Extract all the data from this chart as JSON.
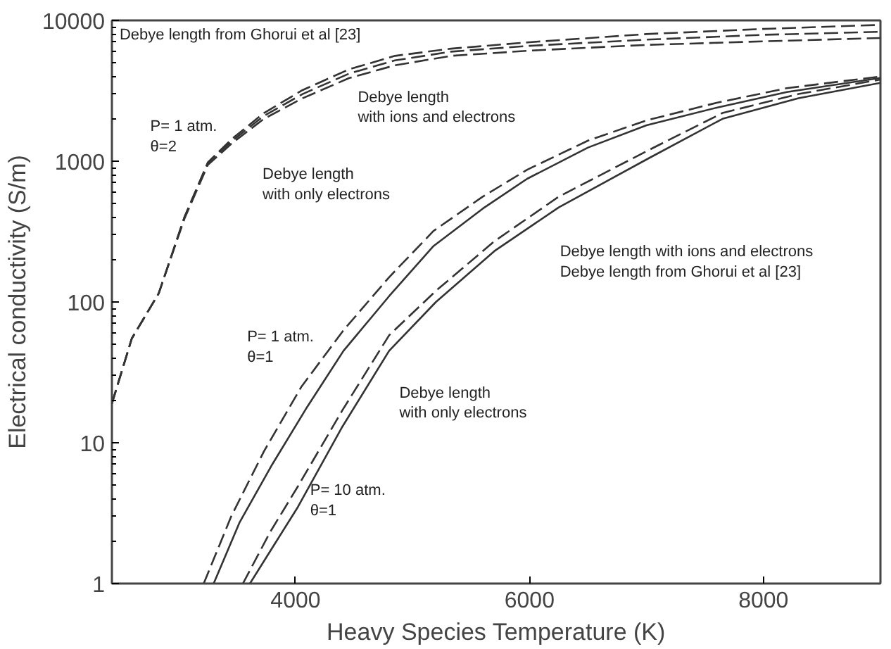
{
  "chart_data": {
    "type": "line",
    "xlabel": "Heavy Species Temperature (K)",
    "ylabel": "Electrical conductivity (S/m)",
    "xlim": [
      2430,
      9000
    ],
    "xticks": [
      4000,
      6000,
      8000
    ],
    "ylim": [
      1,
      10000
    ],
    "yticks": [
      1,
      10,
      100,
      1000,
      10000
    ],
    "log": "y",
    "grid": false,
    "marker": "none",
    "series": [
      {
        "color": "#333333",
        "line_style": "dashed",
        "x": [
          2430,
          2600,
          2830,
          3050,
          3250,
          3460,
          3730,
          4060,
          4460,
          4850,
          5330,
          6000,
          7000,
          8000,
          9000
        ],
        "values": [
          19,
          55,
          115,
          400,
          980,
          1450,
          2200,
          3200,
          4500,
          5600,
          6300,
          7000,
          8000,
          8700,
          9300
        ]
      },
      {
        "color": "#333333",
        "line_style": "dashed",
        "x": [
          2430,
          2600,
          2830,
          3050,
          3250,
          3460,
          3730,
          4060,
          4460,
          4850,
          5330,
          6000,
          7000,
          8000,
          9000
        ],
        "values": [
          19,
          55,
          115,
          400,
          970,
          1400,
          2100,
          3000,
          4200,
          5200,
          6000,
          6600,
          7300,
          7900,
          8300
        ]
      },
      {
        "color": "#333333",
        "line_style": "dashed",
        "x": [
          2430,
          2600,
          2830,
          3050,
          3250,
          3460,
          3730,
          4060,
          4460,
          4850,
          5330,
          6000,
          7000,
          8000,
          9000
        ],
        "values": [
          19,
          55,
          115,
          390,
          940,
          1350,
          2000,
          2800,
          3900,
          4800,
          5600,
          6100,
          6700,
          7100,
          7500
        ]
      },
      {
        "color": "#333333",
        "line_style": "dashed",
        "x": [
          3215,
          3450,
          3730,
          4050,
          4410,
          4800,
          5180,
          5600,
          5980,
          6500,
          7000,
          7600,
          8200,
          9000
        ],
        "values": [
          1,
          3,
          8.7,
          25,
          63,
          150,
          320,
          560,
          870,
          1400,
          1950,
          2600,
          3300,
          4000
        ]
      },
      {
        "color": "#333333",
        "line_style": "solid",
        "x": [
          3300,
          3520,
          3800,
          4100,
          4410,
          4800,
          5180,
          5600,
          5980,
          6500,
          7000,
          7600,
          8200,
          9000
        ],
        "values": [
          1,
          2.7,
          7,
          18,
          45,
          110,
          250,
          460,
          750,
          1250,
          1800,
          2400,
          3100,
          3900
        ]
      },
      {
        "color": "#333333",
        "line_style": "dashed",
        "x": [
          3550,
          3780,
          4020,
          4400,
          4800,
          5200,
          5700,
          6250,
          7020,
          7650,
          8300,
          9000
        ],
        "values": [
          1,
          2.3,
          4.9,
          17,
          58,
          120,
          270,
          560,
          1200,
          2200,
          3000,
          3800
        ]
      },
      {
        "color": "#333333",
        "line_style": "solid",
        "x": [
          3610,
          3820,
          4020,
          4400,
          4800,
          5200,
          5700,
          6250,
          7020,
          7650,
          8300,
          9000
        ],
        "values": [
          1,
          1.9,
          3.5,
          13,
          45,
          100,
          230,
          470,
          1050,
          2000,
          2800,
          3600
        ]
      }
    ],
    "annotations": [
      "Debye length from Ghorui et al [23]",
      "Debye length\nwith ions and electrons",
      "P= 1 atm.\nθ=2",
      "Debye length\nwith only electrons",
      "Debye length with ions and electrons\nDebye length from Ghorui et al [23]",
      "P= 1 atm.\nθ=1",
      "Debye length\nwith only electrons",
      "P= 10 atm.\nθ=1"
    ]
  }
}
